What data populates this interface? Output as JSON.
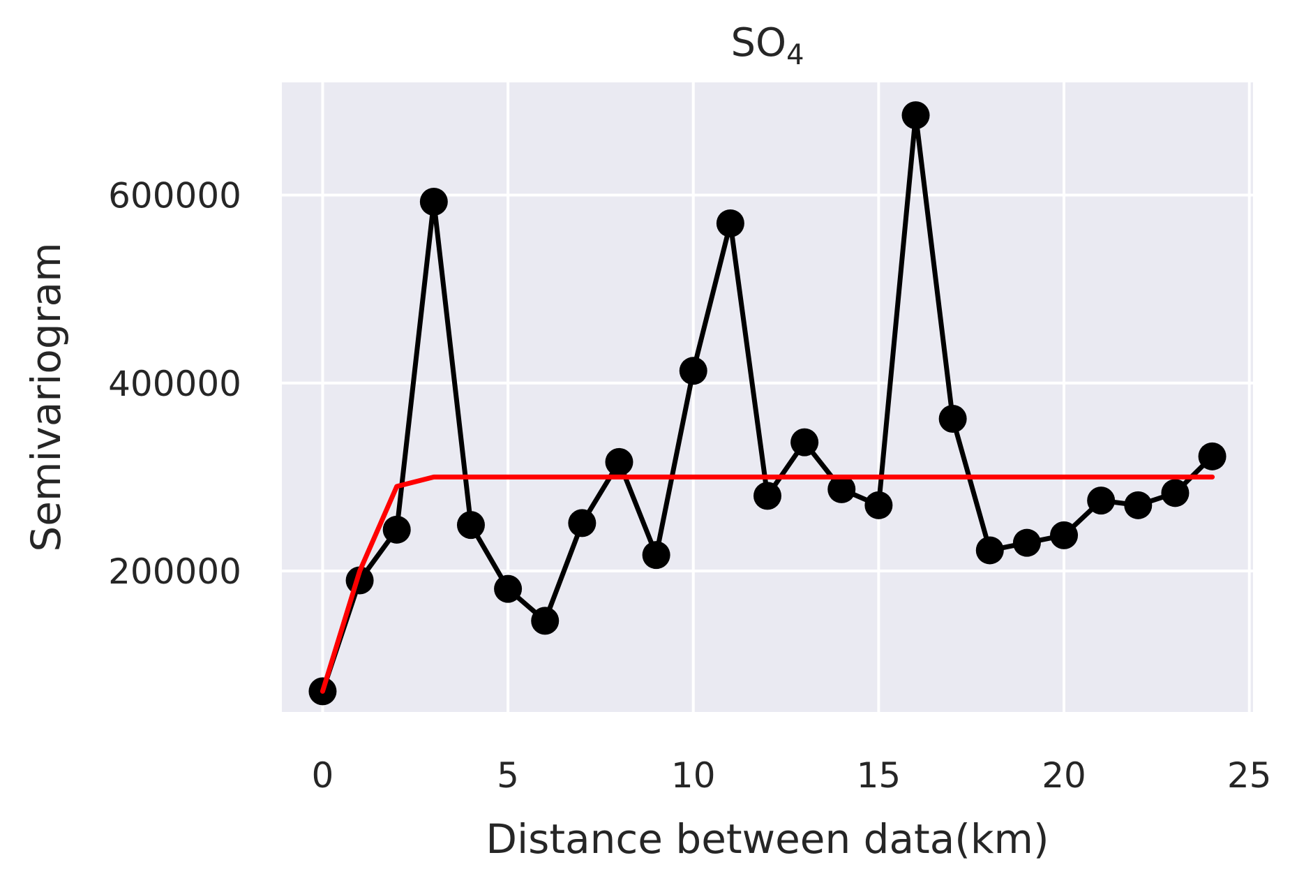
{
  "chart_data": {
    "type": "line",
    "title": "SO",
    "title_subscript": "4",
    "xlabel": "Distance between data(km)",
    "ylabel": "Semivariogram",
    "xlim": [
      -1.1,
      25.1
    ],
    "ylim": [
      50000,
      720000
    ],
    "xticks": [
      0,
      5,
      10,
      15,
      20,
      25
    ],
    "yticks": [
      200000,
      400000,
      600000
    ],
    "xtick_labels": [
      "0",
      "5",
      "10",
      "15",
      "20",
      "25"
    ],
    "ytick_labels": [
      "200000",
      "400000",
      "600000"
    ],
    "grid": true,
    "background_color": "#eaeaf2",
    "grid_color": "#ffffff",
    "series": [
      {
        "color": "#000000",
        "marker": "circle",
        "x": [
          0,
          1,
          2,
          3,
          4,
          5,
          6,
          7,
          8,
          9,
          10,
          11,
          12,
          13,
          14,
          15,
          16,
          17,
          18,
          19,
          20,
          21,
          22,
          23,
          24
        ],
        "values": [
          72000,
          190000,
          244000,
          593000,
          249000,
          181000,
          147000,
          251000,
          316000,
          217000,
          413000,
          570000,
          280000,
          337000,
          287000,
          270000,
          685000,
          362000,
          222000,
          230000,
          238000,
          275000,
          270000,
          283000,
          322000
        ]
      },
      {
        "color": "#ff0000",
        "marker": "none",
        "x": [
          0,
          1,
          2,
          3,
          4,
          5,
          6,
          7,
          8,
          9,
          10,
          11,
          12,
          13,
          14,
          15,
          16,
          17,
          18,
          19,
          20,
          21,
          22,
          23,
          24
        ],
        "values": [
          72000,
          200000,
          290000,
          300000,
          300000,
          300000,
          300000,
          300000,
          300000,
          300000,
          300000,
          300000,
          300000,
          300000,
          300000,
          300000,
          300000,
          300000,
          300000,
          300000,
          300000,
          300000,
          300000,
          300000,
          300000
        ]
      }
    ]
  }
}
